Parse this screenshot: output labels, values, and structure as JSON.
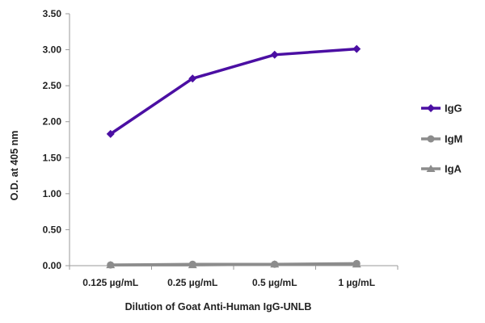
{
  "chart_data": {
    "type": "line",
    "title": "",
    "xlabel": "Dilution of Goat Anti-Human IgG-UNLB",
    "ylabel": "O.D. at 405 nm",
    "categories": [
      "0.125 µg/mL",
      "0.25 µg/mL",
      "0.5 µg/mL",
      "1 µg/mL"
    ],
    "ylim": [
      0,
      3.5
    ],
    "yticks": [
      "0.00",
      "0.50",
      "1.00",
      "1.50",
      "2.00",
      "2.50",
      "3.00",
      "3.50"
    ],
    "grid": false,
    "legend_position": "right",
    "series": [
      {
        "name": "IgG",
        "values": [
          1.83,
          2.6,
          2.93,
          3.01
        ],
        "color": "#4b0fa3",
        "marker": "diamond"
      },
      {
        "name": "IgM",
        "values": [
          0.01,
          0.02,
          0.02,
          0.03
        ],
        "color": "#8c8c8c",
        "marker": "circle"
      },
      {
        "name": "IgA",
        "values": [
          0.01,
          0.01,
          0.02,
          0.02
        ],
        "color": "#8c8c8c",
        "marker": "triangle"
      }
    ]
  }
}
